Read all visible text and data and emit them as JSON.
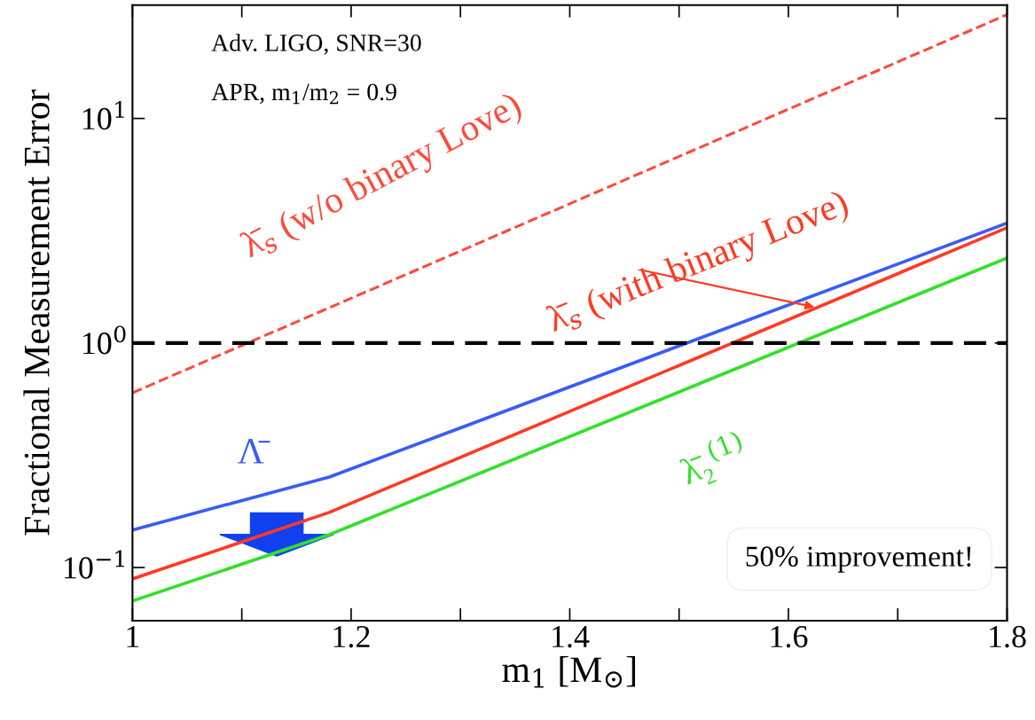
{
  "chart_data": {
    "type": "line",
    "xlabel": "m$_{1}$ [M$_{⊙}$]",
    "ylabel": "Fractional Measurement Error",
    "log": "y",
    "xlim": [
      1,
      1.8
    ],
    "ylim": [
      0.058,
      32
    ],
    "xticks": [
      1,
      {
        "value": 1.1,
        "label": null
      },
      1.2,
      {
        "value": 1.3,
        "label": null
      },
      1.4,
      {
        "value": 1.5,
        "label": null
      },
      1.6,
      {
        "value": 1.7,
        "label": null
      },
      1.8
    ],
    "yticks": [
      {
        "value": 0.1,
        "label": "10$^{−1}$"
      },
      {
        "value": 1,
        "label": "10$^{0}$"
      },
      {
        "value": 10,
        "label": "10$^{1}$"
      }
    ],
    "grid": false,
    "marker": "none",
    "series": [
      {
        "name": "λ̄$_{s}$ (w/o binary Love)",
        "color": "#ff4a3a",
        "line_style": "dashed",
        "x": [
          1,
          1.8
        ],
        "values": [
          0.6,
          29
        ]
      },
      {
        "name": "λ̄$_{s}$ (with binary Love)",
        "color": "#ff3a24",
        "line_style": "solid",
        "x": [
          1,
          1.18,
          1.8
        ],
        "values": [
          0.089,
          0.176,
          3.26
        ]
      },
      {
        "name": "Λ̄",
        "color": "#3a5cf5",
        "line_style": "solid",
        "x": [
          1,
          1.18,
          1.8
        ],
        "values": [
          0.147,
          0.253,
          3.42
        ]
      },
      {
        "name": "λ̄₂$^{(1)}$",
        "color": "#33e02a",
        "line_style": "solid",
        "x": [
          1,
          1.18,
          1.8
        ],
        "values": [
          0.071,
          0.14,
          2.39
        ]
      }
    ],
    "ref_lines": [
      {
        "axis": "y",
        "value": 1,
        "color": "#000000",
        "line_style": "dashed"
      }
    ],
    "annotations": [
      "Adv. LIGO, SNR=30",
      "APR, m$_{1}$/m$_{2}$ = 0.9",
      "50% improvement!"
    ]
  }
}
